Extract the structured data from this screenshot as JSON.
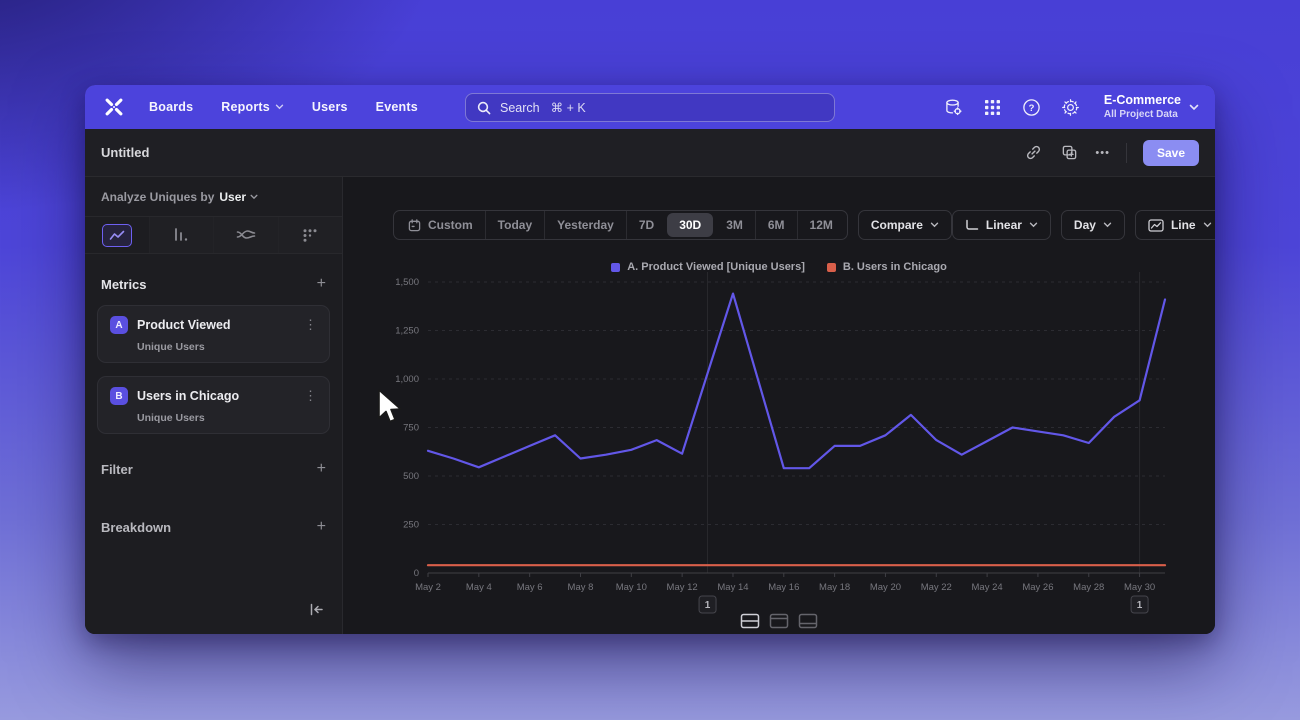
{
  "colors": {
    "topbar": "#4c43dc",
    "save_button": "#8b8df2",
    "series_a": "#6257e8",
    "series_b": "#d95f4a"
  },
  "topbar": {
    "nav": [
      {
        "label": "Boards",
        "chevron": false
      },
      {
        "label": "Reports",
        "chevron": true
      },
      {
        "label": "Users",
        "chevron": false
      },
      {
        "label": "Events",
        "chevron": false
      }
    ],
    "search_label": "Search",
    "search_shortcut": "⌘ + K",
    "icons": [
      "data-governance-icon",
      "apps-grid-icon",
      "help-icon",
      "settings-icon"
    ],
    "project_name": "E-Commerce",
    "project_subtitle": "All Project Data"
  },
  "report_header": {
    "title": "Untitled",
    "more_label": "•••",
    "save_label": "Save"
  },
  "sidebar": {
    "analyze_label": "Analyze Uniques by",
    "analyze_value": "User",
    "chart_tabs": [
      "insights-line-icon",
      "bar-chart-icon",
      "flows-icon",
      "retention-icon"
    ],
    "metrics_header": "Metrics",
    "add_label": "+",
    "metrics": [
      {
        "letter": "A",
        "name": "Product Viewed",
        "type": "Unique Users",
        "menu": "⋮"
      },
      {
        "letter": "B",
        "name": "Users in Chicago",
        "type": "Unique Users",
        "menu": "⋮"
      }
    ],
    "filter_header": "Filter",
    "breakdown_header": "Breakdown"
  },
  "controls": {
    "date_ranges": [
      "Custom",
      "Today",
      "Yesterday",
      "7D",
      "30D",
      "3M",
      "6M",
      "12M"
    ],
    "selected_range": "30D",
    "compare_label": "Compare",
    "scale_label": "Linear",
    "interval_label": "Day",
    "chart_type_label": "Line"
  },
  "legend": {
    "items": [
      {
        "label": "A. Product Viewed [Unique Users]",
        "color": "#6257e8"
      },
      {
        "label": "B. Users in Chicago",
        "color": "#d95f4a"
      }
    ]
  },
  "chart_data": {
    "type": "line",
    "x": [
      "May 2",
      "May 3",
      "May 4",
      "May 5",
      "May 6",
      "May 7",
      "May 8",
      "May 9",
      "May 10",
      "May 11",
      "May 12",
      "May 13",
      "May 14",
      "May 15",
      "May 16",
      "May 17",
      "May 18",
      "May 19",
      "May 20",
      "May 21",
      "May 22",
      "May 23",
      "May 24",
      "May 25",
      "May 26",
      "May 27",
      "May 28",
      "May 29",
      "May 30",
      "May 31"
    ],
    "series": [
      {
        "name": "A. Product Viewed [Unique Users]",
        "color": "#6257e8",
        "values": [
          630,
          590,
          545,
          600,
          655,
          710,
          590,
          610,
          635,
          685,
          615,
          1030,
          1440,
          990,
          540,
          540,
          655,
          655,
          710,
          815,
          685,
          610,
          680,
          750,
          730,
          710,
          670,
          805,
          890,
          1410
        ]
      },
      {
        "name": "B. Users in Chicago",
        "color": "#d95f4a",
        "values": [
          40,
          40,
          40,
          40,
          40,
          40,
          40,
          40,
          40,
          40,
          40,
          40,
          40,
          40,
          40,
          40,
          40,
          40,
          40,
          40,
          40,
          40,
          40,
          40,
          40,
          40,
          40,
          40,
          40,
          40
        ]
      }
    ],
    "ylim": [
      0,
      1500
    ],
    "yticks": [
      0,
      250,
      500,
      750,
      1000,
      1250,
      1500
    ],
    "ytick_labels": [
      "0",
      "250",
      "500",
      "750",
      "1,000",
      "1,250",
      "1,500"
    ],
    "xtick_every": 2,
    "grid": "dashed-horizontal",
    "legend_position": "top-center",
    "annotations": [
      {
        "x_index": 11,
        "label": "1"
      },
      {
        "x_index": 28,
        "label": "1"
      }
    ]
  },
  "footer": {
    "layout_toggles": [
      "layout-split-icon",
      "layout-top-icon",
      "layout-bottom-icon"
    ],
    "selected_toggle": "layout-split-icon"
  }
}
